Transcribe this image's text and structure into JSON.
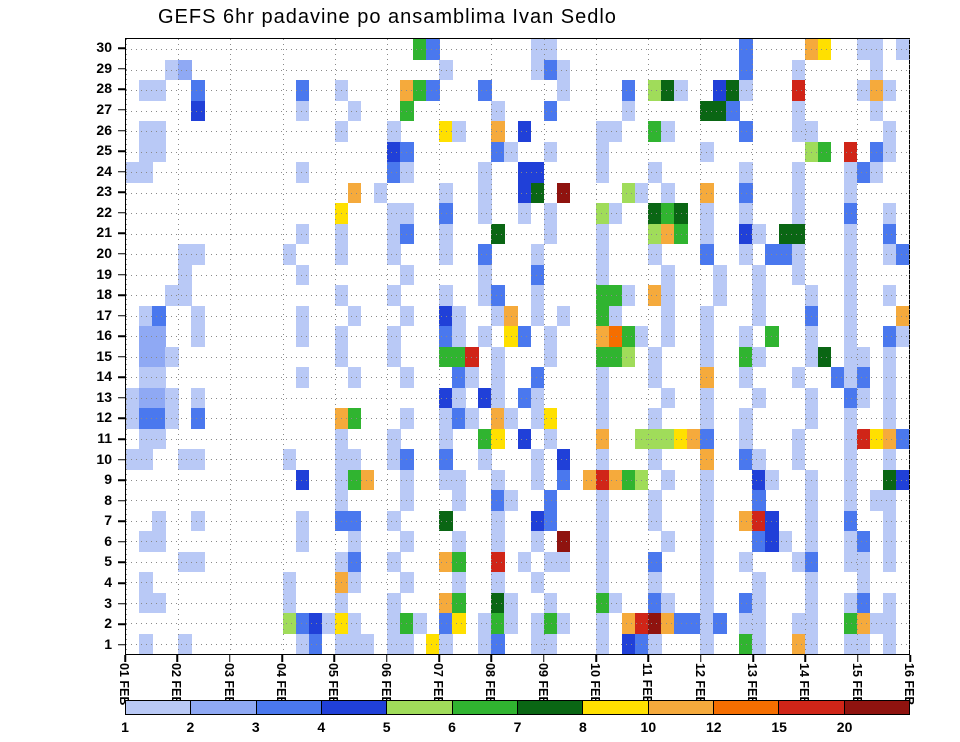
{
  "title": "GEFS 6hr padavine po ansamblima Ivan Sedlo",
  "chart_data": {
    "type": "heatmap",
    "title": "GEFS 6hr padavine po ansamblima Ivan Sedlo",
    "x_tick_labels": [
      "01 FEB",
      "02 FEB",
      "03 FEB",
      "04 FEB",
      "05 FEB",
      "06 FEB",
      "07 FEB",
      "08 FEB",
      "09 FEB",
      "10 FEB",
      "11 FEB",
      "12 FEB",
      "13 FEB",
      "14 FEB",
      "15 FEB",
      "16 FEB"
    ],
    "columns_per_day": 4,
    "n_columns": 60,
    "y_tick_labels": [
      "30",
      "29",
      "28",
      "27",
      "26",
      "25",
      "24",
      "23",
      "22",
      "21",
      "20",
      "19",
      "18",
      "17",
      "16",
      "15",
      "14",
      "13",
      "12",
      "11",
      "10",
      "9",
      "8",
      "7",
      "6",
      "5",
      "4",
      "3",
      "2",
      "1"
    ],
    "colorbar": {
      "tick_labels": [
        "1",
        "2",
        "3",
        "4",
        "5",
        "6",
        "7",
        "8",
        "10",
        "12",
        "15",
        "20"
      ],
      "colors": [
        "#b9c9f6",
        "#8fa9f4",
        "#4a78ee",
        "#2040d8",
        "#a0dc5a",
        "#30b430",
        "#0a6614",
        "#ffe000",
        "#f5aa3c",
        "#f56e00",
        "#d02518",
        "#8f130f"
      ],
      "level_chars": "123456789abc",
      "no_value_char": "."
    },
    "grid_rows_top_to_bottom": [
      [
        "..........",
        "..........",
        "..63......",
        ".11.......",
        ".......3..",
        "..98..11.1"
      ],
      [
        "...12.....",
        "..........",
        "....1.....",
        ".131......",
        ".......3..",
        ".1.....1.."
      ],
      [
        ".11..3....",
        "...3..1...",
        ".963...3..",
        "...1....3.",
        "571..471..",
        ".b....191."
      ],
      [
        ".....4....",
        "...1...1..",
        ".6......1.",
        "..3.....1.",
        "....773...",
        ".1.....1.."
      ],
      [
        ".11.......",
        "......1...",
        "1...81..9.",
        "4.....11..",
        "61.....3..",
        ".11.....1."
      ],
      [
        ".11.......",
        "..........",
        "43......31",
        "..1...1...",
        "....1.....",
        "..56.b.31."
      ],
      [
        "11........",
        "...1......",
        "31.....1..",
        "44....1...",
        "1......1..",
        ".1...131.."
      ],
      [
        "..........",
        ".......9.1",
        "....1..1..",
        "47.c....51",
        ".1..9..3..",
        ".1...1...."
      ],
      [
        "..........",
        "......8...",
        "11..3..1..",
        "1.1...51..",
        "767.1..1..",
        ".1...3..1."
      ],
      [
        "..........",
        "...1..1...",
        "13..1...7.",
        "..1...1...",
        "596.1..41.",
        "77...1..3."
      ],
      [
        "....11....",
        "..1...1...",
        "1...1..3..",
        ".1....1...",
        "1...3..1.3",
        "31...1..13"
      ],
      [
        "....1.....",
        "...1......",
        ".1.....1..",
        ".3....1...",
        ".1...1..1.",
        ".1...1...."
      ],
      [
        "...11.....",
        "......1...",
        "1...1..13.",
        ".1....661.",
        "91...1..1.",
        "..1..1..1."
      ],
      [
        ".13..1....",
        "...1...1..",
        ".1..41..19",
        ".1.1..61..",
        ".1..1...1.",
        "..3..1...9"
      ],
      [
        ".22..1....",
        "...1..1...",
        "1...31.1.8",
        "3.1...9a61",
        ".1..1..1.6",
        "..1..1..31"
      ],
      [
        ".221......",
        "......1...",
        "1...66b.1.",
        "..1...665.",
        "1...1..61.",
        "..17.11.1."
      ],
      [
        ".11.......",
        "...1...1..",
        ".1...31.1.",
        ".3....1...",
        "1...9..1..",
        ".1..313.1."
      ],
      [
        "1221.1....",
        "..........",
        "....41.41.",
        "31....1...",
        ".1..1...1.",
        "..1..31.1."
      ],
      [
        "1331.3....",
        "......96..",
        ".1..131.91",
        ".18...1...",
        "1...1..1..",
        "..1..1..1."
      ],
      [
        ".11.......",
        "......1...",
        "1...1..68.",
        "4.1...9..5",
        "55893..1..",
        ".1...1b893"
      ],
      [
        "11..11....",
        "..1...11..",
        "13..3..1..",
        ".1.4..1...",
        "1...9..31.",
        ".1...1..1."
      ],
      [
        "..........",
        "...4..169.",
        ".1..11..1.",
        ".1.3.9b965",
        ".1..1...41",
        "..1..1..74"
      ],
      [
        "..........",
        "......1...",
        ".1...1..31",
        "..3...1...",
        "1...1...3.",
        "..1..1.11."
      ],
      [
        "..1..1....",
        "...1..33..",
        "1...7...1.",
        ".43...1...",
        "1...1..9b4",
        "..1..3..1."
      ],
      [
        ".11.......",
        "...1...1..",
        ".1...1..1.",
        ".1.c..1...",
        ".1..1...34",
        "1.1..13.1."
      ],
      [
        "....11....",
        "......13..",
        "1...96..b.",
        "1.11..1...",
        "3...1..1..",
        ".13..11.1."
      ],
      [
        ".1........",
        "..1...91..",
        ".1...1..1.",
        ".1....1...",
        "1...1...1.",
        "..1...1..."
      ],
      [
        ".11.......",
        "..1...1...",
        "1...96..71",
        "..1...61..",
        "31..1..31.",
        "..1..13.1."
      ],
      [
        "..........",
        "..534181..",
        "161.38.161",
        ".161..1.9b",
        "c93313.11.",
        ".11..6911."
      ],
      [
        ".1..1.....",
        "...13.111.",
        "11.81..13.",
        ".11...1.43",
        "1...1..61.",
        ".91..11.1."
      ]
    ]
  }
}
